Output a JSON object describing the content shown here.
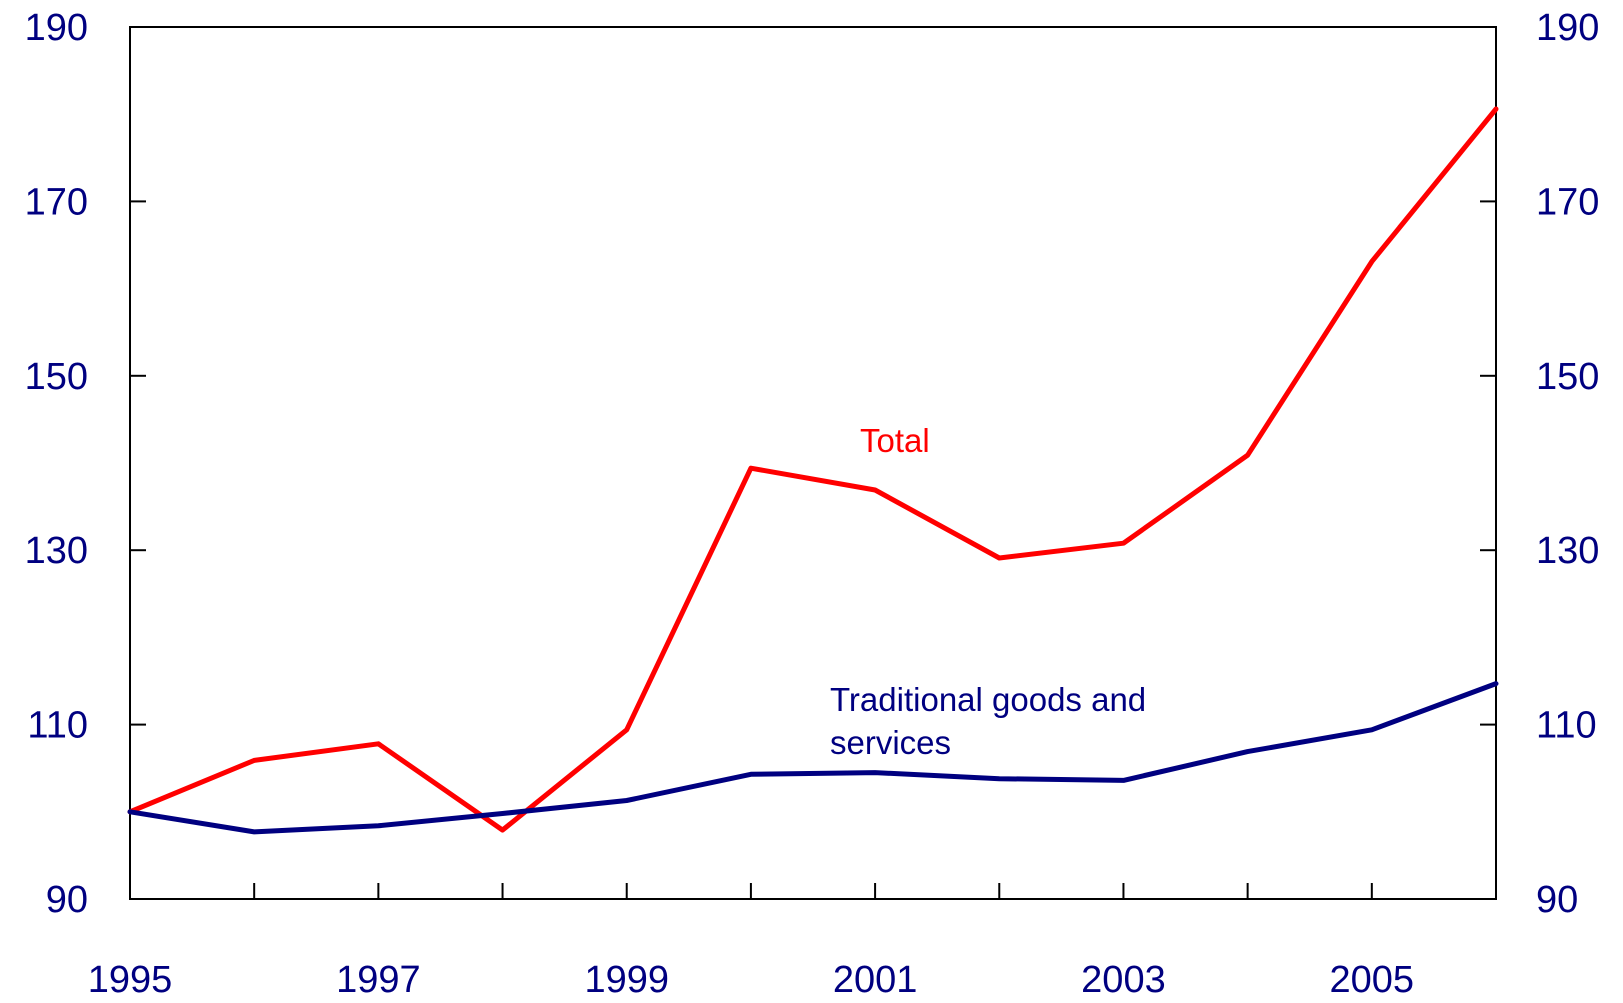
{
  "chart_data": {
    "type": "line",
    "title": "",
    "xlabel": "",
    "ylabel": "",
    "x": [
      1995,
      1996,
      1997,
      1998,
      1999,
      2000,
      2001,
      2002,
      2003,
      2004,
      2005,
      2006
    ],
    "xlim": [
      1995,
      2006
    ],
    "ylim": [
      90,
      190
    ],
    "x_tick_labels": [
      "1995",
      "1997",
      "1999",
      "2001",
      "2003",
      "2005"
    ],
    "y_tick_labels": [
      "90",
      "110",
      "130",
      "150",
      "170",
      "190"
    ],
    "right_axis_tick_labels": [
      "90",
      "110",
      "130",
      "150",
      "170",
      "190"
    ],
    "grid": false,
    "legend": "inline labels",
    "series": [
      {
        "name": "Total",
        "color": "#ff0000",
        "values": [
          100,
          105.9,
          107.8,
          97.9,
          109.4,
          139.4,
          136.9,
          129.1,
          130.8,
          140.9,
          163.1,
          180.6
        ]
      },
      {
        "name": "Traditional goods and services",
        "color": "#000080",
        "values": [
          100,
          97.7,
          98.4,
          99.8,
          101.3,
          104.3,
          104.5,
          103.8,
          103.6,
          106.9,
          109.4,
          114.7
        ]
      }
    ],
    "axis_color": "#000000",
    "tick_label_color": "#000080"
  }
}
